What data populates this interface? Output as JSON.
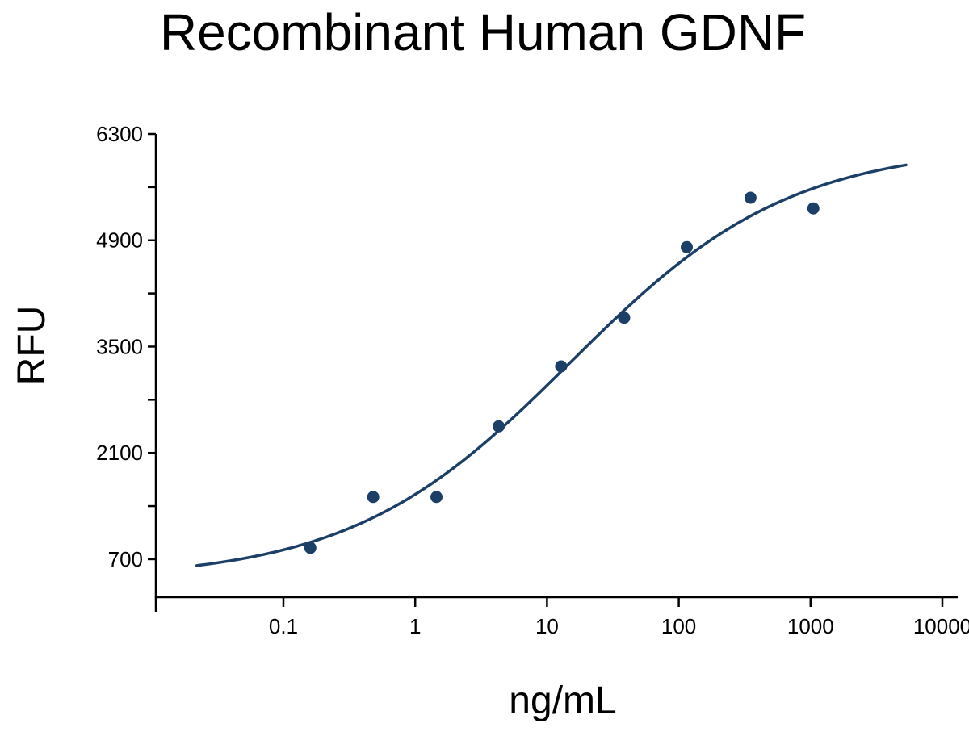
{
  "chart_data": {
    "type": "scatter",
    "title": "Recombinant Human GDNF",
    "xlabel": "ng/mL",
    "ylabel": "RFU",
    "x_scale": "log",
    "xlim": [
      0.02,
      13000
    ],
    "ylim": [
      200,
      6300
    ],
    "x_ticks": [
      0.1,
      1,
      10,
      100,
      1000,
      10000
    ],
    "x_tick_labels": [
      "0.1",
      "1",
      "10",
      "100",
      "1000",
      "10000"
    ],
    "y_ticks": [
      700,
      2100,
      3500,
      4900,
      6300
    ],
    "y_tick_labels": [
      "700",
      "2100",
      "3500",
      "4900",
      "6300"
    ],
    "y_minor_ticks": [
      1400,
      2800,
      4200,
      5600
    ],
    "grid": false,
    "colors": {
      "series": "#1b3f66"
    },
    "points": [
      {
        "x": 0.16,
        "y": 850
      },
      {
        "x": 0.48,
        "y": 1520
      },
      {
        "x": 1.45,
        "y": 1520
      },
      {
        "x": 4.3,
        "y": 2450
      },
      {
        "x": 12.8,
        "y": 3240
      },
      {
        "x": 38.5,
        "y": 3880
      },
      {
        "x": 115,
        "y": 4810
      },
      {
        "x": 350,
        "y": 5460
      },
      {
        "x": 1050,
        "y": 5320
      }
    ],
    "fit_curve": {
      "model": "4PL",
      "bottom": 430,
      "top": 6150,
      "ec50": 15,
      "hill": 0.52,
      "x_range": [
        0.022,
        5300
      ]
    }
  }
}
